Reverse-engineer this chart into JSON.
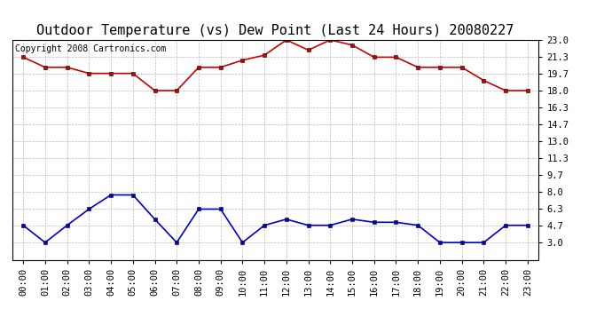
{
  "title": "Outdoor Temperature (vs) Dew Point (Last 24 Hours) 20080227",
  "copyright_text": "Copyright 2008 Cartronics.com",
  "x_labels": [
    "00:00",
    "01:00",
    "02:00",
    "03:00",
    "04:00",
    "05:00",
    "06:00",
    "07:00",
    "08:00",
    "09:00",
    "10:00",
    "11:00",
    "12:00",
    "13:00",
    "14:00",
    "15:00",
    "16:00",
    "17:00",
    "18:00",
    "19:00",
    "20:00",
    "21:00",
    "22:00",
    "23:00"
  ],
  "temp_data": [
    21.3,
    20.3,
    20.3,
    19.7,
    19.7,
    19.7,
    18.0,
    18.0,
    20.3,
    20.3,
    21.0,
    21.5,
    23.0,
    22.0,
    23.0,
    22.5,
    21.3,
    21.3,
    20.3,
    20.3,
    20.3,
    19.0,
    18.0,
    18.0
  ],
  "dew_data": [
    4.7,
    3.0,
    4.7,
    6.3,
    7.7,
    7.7,
    5.3,
    3.0,
    6.3,
    6.3,
    3.0,
    4.7,
    5.3,
    4.7,
    4.7,
    5.3,
    5.0,
    5.0,
    4.7,
    3.0,
    3.0,
    3.0,
    4.7,
    4.7
  ],
  "y_ticks": [
    3.0,
    4.7,
    6.3,
    8.0,
    9.7,
    11.3,
    13.0,
    14.7,
    16.3,
    18.0,
    19.7,
    21.3,
    23.0
  ],
  "y_min": 1.3,
  "y_max": 23.0,
  "temp_color": "#cc0000",
  "dew_color": "#0000cc",
  "bg_color": "#ffffff",
  "plot_bg_color": "#ffffff",
  "grid_color": "#bbbbbb",
  "title_fontsize": 11,
  "copyright_fontsize": 7,
  "tick_fontsize": 7.5
}
